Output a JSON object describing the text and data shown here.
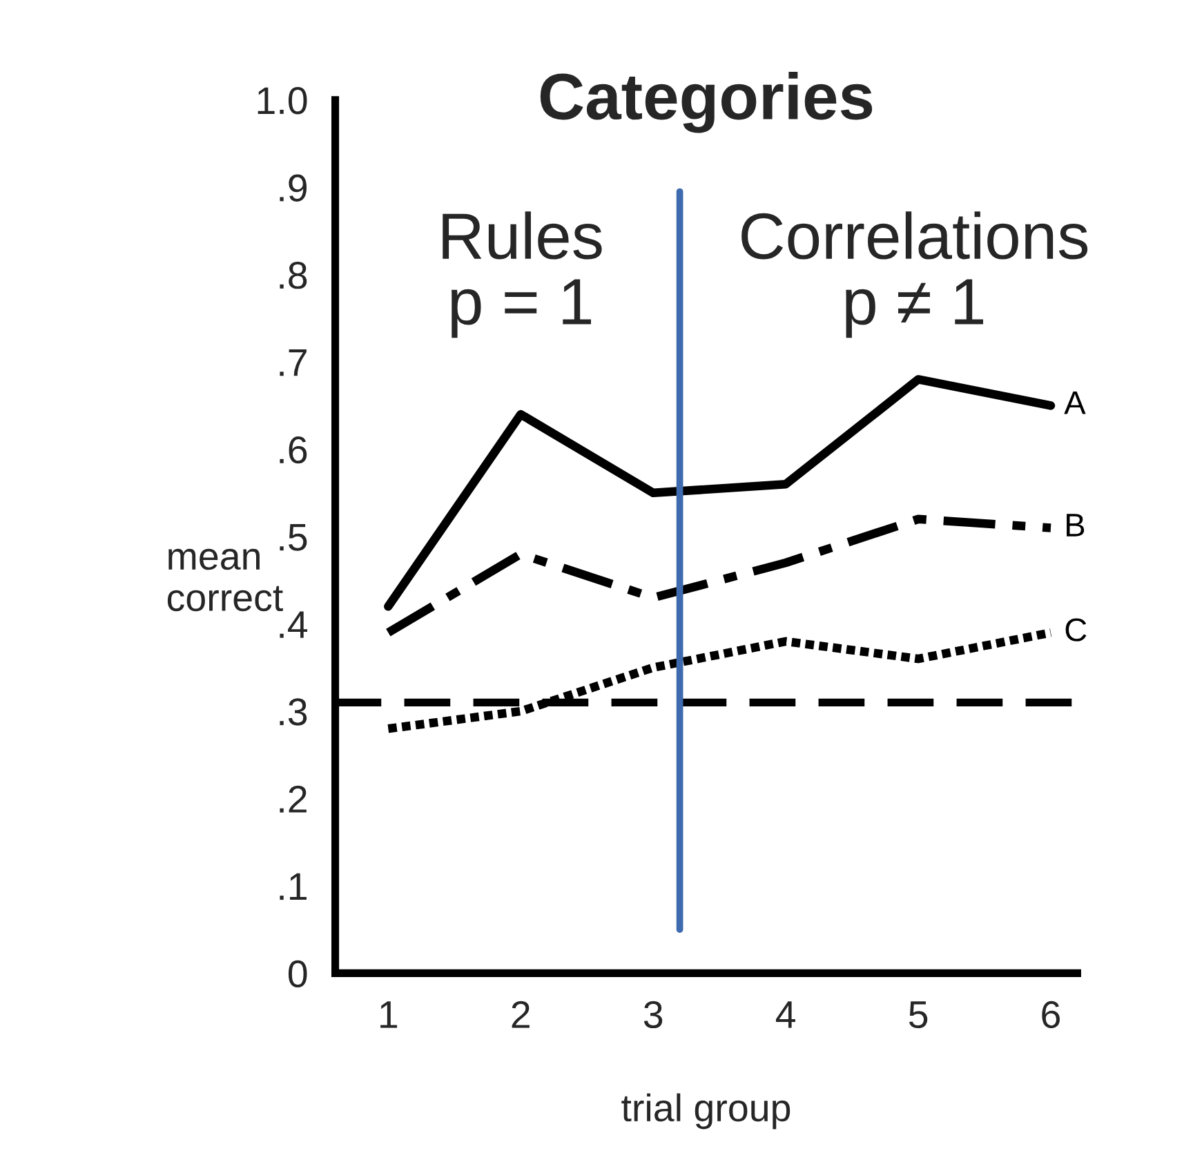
{
  "chart_data": {
    "type": "line",
    "title": "Categories",
    "xlabel": "trial group",
    "ylabel": "mean\ncorrect",
    "x": [
      1,
      2,
      3,
      4,
      5,
      6
    ],
    "series": [
      {
        "name": "A",
        "color": "#000000",
        "line_style": "solid",
        "values": [
          0.42,
          0.64,
          0.55,
          0.56,
          0.68,
          0.65
        ]
      },
      {
        "name": "B",
        "color": "#000000",
        "line_style": "dashdot",
        "values": [
          0.39,
          0.48,
          0.43,
          0.47,
          0.52,
          0.51
        ]
      },
      {
        "name": "C",
        "color": "#000000",
        "line_style": "dotted",
        "values": [
          0.28,
          0.3,
          0.35,
          0.38,
          0.36,
          0.39
        ]
      }
    ],
    "xlim": [
      0.6,
      6.2
    ],
    "ylim": [
      0,
      1.0
    ],
    "xticks": [
      1,
      2,
      3,
      4,
      5,
      6
    ],
    "yticks": [
      {
        "value": 0,
        "label": "0"
      },
      {
        "value": 0.1,
        "label": ".1"
      },
      {
        "value": 0.2,
        "label": ".2"
      },
      {
        "value": 0.3,
        "label": ".3"
      },
      {
        "value": 0.4,
        "label": ".4"
      },
      {
        "value": 0.5,
        "label": ".5"
      },
      {
        "value": 0.6,
        "label": ".6"
      },
      {
        "value": 0.7,
        "label": ".7"
      },
      {
        "value": 0.8,
        "label": ".8"
      },
      {
        "value": 0.9,
        "label": ".9"
      },
      {
        "value": 1.0,
        "label": "1.0"
      }
    ],
    "ref_lines": [
      {
        "axis": "y",
        "value": 0.31,
        "color": "#000000",
        "line_style": "dashed"
      },
      {
        "axis": "x",
        "value": 3.2,
        "color": "#3e6bb0",
        "line_style": "solid"
      }
    ],
    "annotations": [
      "Rules\np = 1",
      "Correlations\np ≠ 1"
    ],
    "grid": false,
    "legend": false,
    "marker": "none"
  }
}
